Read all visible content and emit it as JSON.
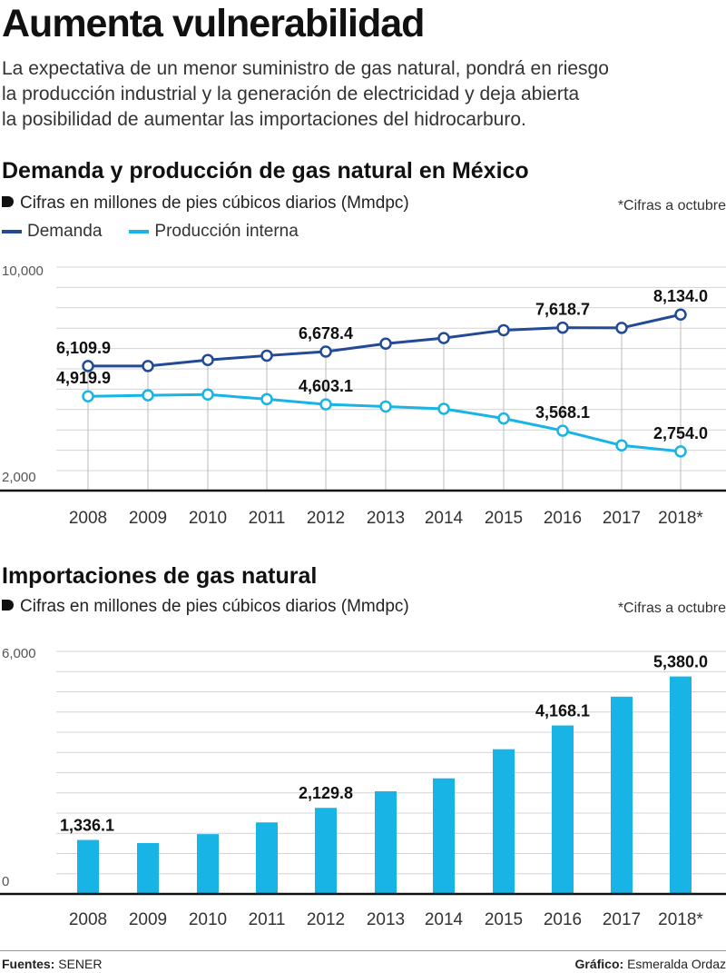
{
  "title": "Aumenta vulnerabilidad",
  "intro": [
    "La expectativa de un menor suministro de gas natural, pondrá en riesgo",
    "la producción industrial y la generación de electricidad y deja abierta",
    "la posibilidad de aumentar las importaciones del hidrocarburo."
  ],
  "chart1": {
    "heading": "Demanda y producción de gas natural en México",
    "subtitle": "Cifras en millones de pies cúbicos diarios (Mmdpc)",
    "note": "*Cifras a octubre",
    "legend": [
      {
        "name": "Demanda",
        "color": "#234a96"
      },
      {
        "name": "Producción interna",
        "color": "#19b4e6"
      }
    ]
  },
  "chart2": {
    "heading": "Importaciones de gas natural",
    "subtitle": "Cifras en millones de pies cúbicos diarios (Mmdpc)",
    "note": "*Cifras a octubre"
  },
  "footer": {
    "sources_label": "Fuentes:",
    "sources_value": "SENER",
    "credit_label": "Gráfico:",
    "credit_value": "Esmeralda Ordaz"
  },
  "chart_data": [
    {
      "type": "line",
      "title": "Demanda y producción de gas natural en México",
      "ylabel": "Cifras en millones de pies cúbicos diarios (Mmdpc)",
      "x": [
        "2008",
        "2009",
        "2010",
        "2011",
        "2012",
        "2013",
        "2014",
        "2015",
        "2016",
        "2017",
        "2018*"
      ],
      "ylim": [
        2000,
        10000
      ],
      "yticks": [
        "10,000",
        "2,000"
      ],
      "grid": true,
      "legend": "top-left",
      "series": [
        {
          "name": "Demanda",
          "color": "#234a96",
          "values": [
            6109.9,
            6110,
            6350,
            6520,
            6678.4,
            6990,
            7210,
            7520,
            7618.7,
            7610,
            8134.0
          ],
          "labels": [
            "6,109.9",
            "",
            "",
            "",
            "6,678.4",
            "",
            "",
            "",
            "7,618.7",
            "",
            "8,134.0"
          ]
        },
        {
          "name": "Producción interna",
          "color": "#19b4e6",
          "values": [
            4919.9,
            4960,
            4990,
            4810,
            4603.1,
            4520,
            4430,
            4050,
            3568.1,
            2990,
            2754.0
          ],
          "labels": [
            "4,919.9",
            "",
            "",
            "",
            "4,603.1",
            "",
            "",
            "",
            "3,568.1",
            "",
            "2,754.0"
          ]
        }
      ]
    },
    {
      "type": "bar",
      "title": "Importaciones de gas natural",
      "ylabel": "Cifras en millones de pies cúbicos diarios (Mmdpc)",
      "categories": [
        "2008",
        "2009",
        "2010",
        "2011",
        "2012",
        "2013",
        "2014",
        "2015",
        "2016",
        "2017",
        "2018*"
      ],
      "ylim": [
        0,
        6000
      ],
      "yticks": [
        "6,000",
        "0"
      ],
      "grid": true,
      "color": "#19b4e6",
      "values": [
        1336.1,
        1260,
        1480,
        1770,
        2129.8,
        2540,
        2860,
        3580,
        4168.1,
        4880,
        5380.0
      ],
      "labels": [
        "1,336.1",
        "",
        "",
        "",
        "2,129.8",
        "",
        "",
        "",
        "4,168.1",
        "",
        "5,380.0"
      ]
    }
  ]
}
